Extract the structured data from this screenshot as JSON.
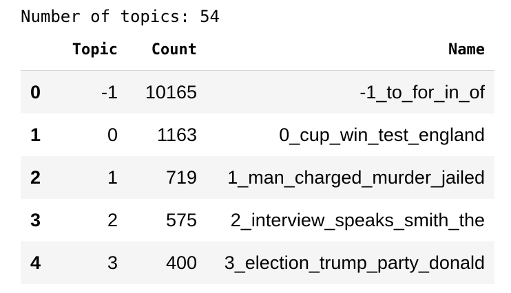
{
  "output": {
    "text": "Number of topics: 54"
  },
  "table": {
    "columns": {
      "index": "",
      "topic": "Topic",
      "count": "Count",
      "name": "Name"
    },
    "rows": [
      {
        "index": "0",
        "topic": "-1",
        "count": "10165",
        "name": "-1_to_for_in_of"
      },
      {
        "index": "1",
        "topic": "0",
        "count": "1163",
        "name": "0_cup_win_test_england"
      },
      {
        "index": "2",
        "topic": "1",
        "count": "719",
        "name": "1_man_charged_murder_jailed"
      },
      {
        "index": "3",
        "topic": "2",
        "count": "575",
        "name": "2_interview_speaks_smith_the"
      },
      {
        "index": "4",
        "topic": "3",
        "count": "400",
        "name": "3_election_trump_party_donald"
      }
    ]
  },
  "colors": {
    "stripe": "#f5f5f5",
    "header_rule": "#d6d6d6",
    "text": "#000000"
  }
}
